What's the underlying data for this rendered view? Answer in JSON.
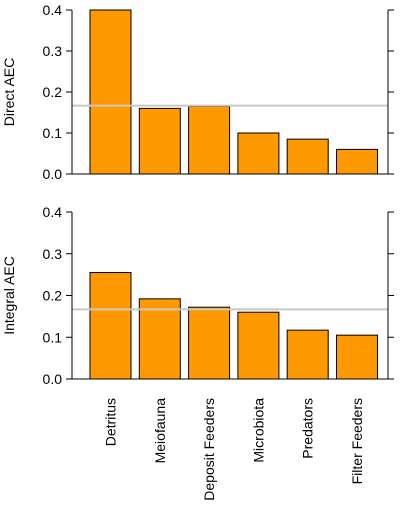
{
  "colors": {
    "bar_fill": "#FF9900",
    "bar_stroke": "#000000",
    "reference_line": "#C8C8C8",
    "axis": "#000000"
  },
  "categories": [
    "Detritus",
    "Meiofauna",
    "Deposit Feeders",
    "Microbiota",
    "Predators",
    "Filter Feeders"
  ],
  "chart_data": [
    {
      "type": "bar",
      "ylabel": "Direct AEC",
      "ylim": [
        0,
        0.4
      ],
      "yticks": [
        "0.0",
        "0.1",
        "0.2",
        "0.3",
        "0.4"
      ],
      "categories": [
        "Detritus",
        "Meiofauna",
        "Deposit Feeders",
        "Microbiota",
        "Predators",
        "Filter Feeders"
      ],
      "values": [
        0.4,
        0.16,
        0.165,
        0.1,
        0.085,
        0.06
      ],
      "reference_line": 0.1667,
      "grid": false,
      "legend": "none"
    },
    {
      "type": "bar",
      "ylabel": "Integral AEC",
      "ylim": [
        0,
        0.4
      ],
      "yticks": [
        "0.0",
        "0.1",
        "0.2",
        "0.3",
        "0.4"
      ],
      "categories": [
        "Detritus",
        "Meiofauna",
        "Deposit Feeders",
        "Microbiota",
        "Predators",
        "Filter Feeders"
      ],
      "values": [
        0.255,
        0.192,
        0.172,
        0.16,
        0.117,
        0.105
      ],
      "reference_line": 0.1667,
      "grid": false,
      "legend": "none"
    }
  ]
}
